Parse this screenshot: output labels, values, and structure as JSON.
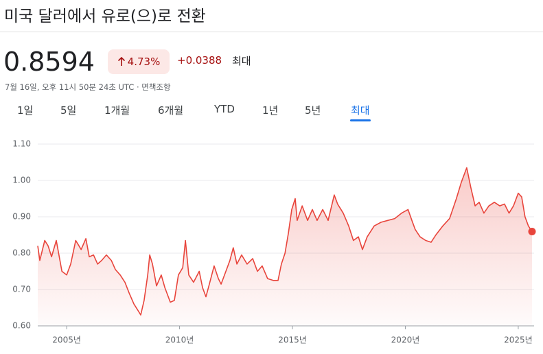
{
  "header": {
    "title": "미국 달러에서 유로(으)로 전환",
    "price": "0.8594",
    "change_percent": "4.73%",
    "change_value": "+0.0388",
    "period": "최대",
    "timestamp": "7월 16일, 오후 11시 50분 24초 UTC · 면책조항"
  },
  "tabs": [
    "1일",
    "5일",
    "1개월",
    "6개월",
    "YTD",
    "1년",
    "5년",
    "최대"
  ],
  "selected_tab": 7,
  "chart_data": {
    "type": "line",
    "color": "#e8453c",
    "x": [
      2003.72,
      2003.81,
      2004.03,
      2004.18,
      2004.33,
      2004.54,
      2004.79,
      2005.0,
      2005.18,
      2005.4,
      2005.64,
      2005.85,
      2006.0,
      2006.19,
      2006.37,
      2006.55,
      2006.76,
      2006.98,
      2007.16,
      2007.37,
      2007.58,
      2007.77,
      2007.98,
      2008.13,
      2008.28,
      2008.43,
      2008.59,
      2008.68,
      2008.8,
      2008.98,
      2009.19,
      2009.35,
      2009.59,
      2009.77,
      2009.95,
      2010.14,
      2010.26,
      2010.41,
      2010.62,
      2010.87,
      2011.02,
      2011.17,
      2011.32,
      2011.53,
      2011.72,
      2011.84,
      2012.08,
      2012.23,
      2012.38,
      2012.54,
      2012.75,
      2012.99,
      2013.24,
      2013.45,
      2013.66,
      2013.9,
      2014.15,
      2014.36,
      2014.51,
      2014.67,
      2014.82,
      2014.97,
      2015.12,
      2015.21,
      2015.43,
      2015.67,
      2015.88,
      2016.09,
      2016.34,
      2016.58,
      2016.85,
      2017.0,
      2017.25,
      2017.49,
      2017.7,
      2017.92,
      2018.1,
      2018.31,
      2018.62,
      2018.92,
      2019.22,
      2019.53,
      2019.83,
      2020.12,
      2020.29,
      2020.44,
      2020.65,
      2020.9,
      2021.14,
      2021.35,
      2021.66,
      2021.96,
      2022.26,
      2022.48,
      2022.72,
      2022.9,
      2023.09,
      2023.27,
      2023.48,
      2023.7,
      2023.94,
      2024.18,
      2024.39,
      2024.59,
      2024.79,
      2025.0,
      2025.15,
      2025.3,
      2025.45,
      2025.61
    ],
    "values": [
      0.82,
      0.78,
      0.835,
      0.82,
      0.79,
      0.835,
      0.75,
      0.74,
      0.77,
      0.835,
      0.81,
      0.84,
      0.79,
      0.795,
      0.77,
      0.78,
      0.795,
      0.78,
      0.755,
      0.74,
      0.72,
      0.69,
      0.66,
      0.645,
      0.63,
      0.67,
      0.74,
      0.795,
      0.77,
      0.71,
      0.74,
      0.705,
      0.665,
      0.67,
      0.74,
      0.76,
      0.835,
      0.74,
      0.72,
      0.75,
      0.705,
      0.68,
      0.715,
      0.765,
      0.73,
      0.715,
      0.755,
      0.78,
      0.815,
      0.77,
      0.795,
      0.77,
      0.785,
      0.75,
      0.765,
      0.73,
      0.725,
      0.725,
      0.77,
      0.8,
      0.855,
      0.92,
      0.95,
      0.89,
      0.93,
      0.89,
      0.92,
      0.89,
      0.92,
      0.89,
      0.96,
      0.935,
      0.91,
      0.875,
      0.835,
      0.845,
      0.81,
      0.845,
      0.875,
      0.885,
      0.89,
      0.895,
      0.91,
      0.92,
      0.89,
      0.865,
      0.845,
      0.835,
      0.83,
      0.85,
      0.875,
      0.895,
      0.95,
      0.995,
      1.035,
      0.98,
      0.93,
      0.94,
      0.91,
      0.93,
      0.94,
      0.93,
      0.935,
      0.91,
      0.93,
      0.965,
      0.955,
      0.9,
      0.875,
      0.8594
    ],
    "xlim": [
      2003.72,
      2025.61
    ],
    "ylim": [
      0.6,
      1.1
    ],
    "xticks": [
      {
        "value": 2005,
        "label": "2005년"
      },
      {
        "value": 2010,
        "label": "2010년"
      },
      {
        "value": 2015,
        "label": "2015년"
      },
      {
        "value": 2020,
        "label": "2020년"
      },
      {
        "value": 2025,
        "label": "2025년"
      }
    ],
    "yticks": [
      {
        "value": 0.6,
        "label": "0.60"
      },
      {
        "value": 0.7,
        "label": "0.70"
      },
      {
        "value": 0.8,
        "label": "0.80"
      },
      {
        "value": 0.9,
        "label": "0.90"
      },
      {
        "value": 1.0,
        "label": "1.00"
      },
      {
        "value": 1.1,
        "label": "1.10"
      }
    ],
    "grid": true
  }
}
